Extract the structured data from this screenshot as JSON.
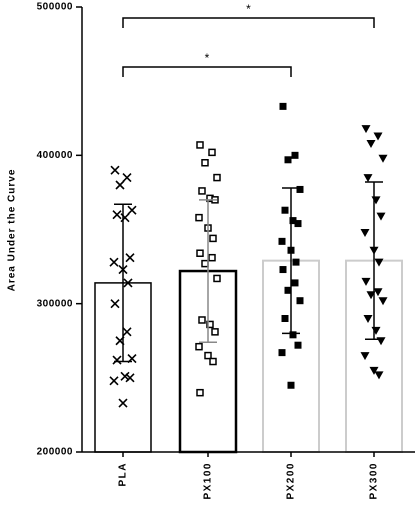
{
  "chart_data": {
    "type": "bar",
    "y_label": "Area Under the Curve",
    "categories": [
      "PLA",
      "PX100",
      "PX200",
      "PX300"
    ],
    "values": [
      314000,
      322000,
      329000,
      329000
    ],
    "errors": [
      53000,
      48000,
      49000,
      53000
    ],
    "edge_colors": [
      "#000000",
      "#000000",
      "#cccccc",
      "#cccccc"
    ],
    "edge_widths": [
      1.5,
      2.5,
      2,
      2
    ],
    "error_colors": [
      "#000000",
      "#888888",
      "#000000",
      "#000000"
    ],
    "markers": [
      "x",
      "square-open",
      "square",
      "triangle-down"
    ],
    "points": [
      [
        390000,
        385000,
        380000,
        363000,
        360000,
        358000,
        331000,
        328000,
        323000,
        314000,
        300000,
        281000,
        275000,
        263000,
        262000,
        251000,
        250000,
        248000,
        233000
      ],
      [
        407000,
        402000,
        395000,
        385000,
        376000,
        371000,
        370000,
        358000,
        351000,
        344000,
        334000,
        331000,
        327000,
        317000,
        289000,
        286000,
        281000,
        271000,
        265000,
        261000,
        240000
      ],
      [
        433000,
        400000,
        397000,
        377000,
        363000,
        356000,
        354000,
        342000,
        336000,
        328000,
        323000,
        314000,
        309000,
        302000,
        290000,
        279000,
        272000,
        267000,
        245000
      ],
      [
        418000,
        413000,
        408000,
        398000,
        385000,
        370000,
        359000,
        348000,
        336000,
        328000,
        315000,
        308000,
        306000,
        302000,
        290000,
        282000,
        275000,
        265000,
        255000,
        252000
      ]
    ],
    "comparisons": [
      {
        "label": "*",
        "pair": [
          0,
          2
        ]
      },
      {
        "label": "*",
        "pair": [
          0,
          3
        ]
      }
    ],
    "ylim": [
      200000,
      500000
    ],
    "yticks": [
      200000,
      300000,
      400000,
      500000
    ]
  }
}
